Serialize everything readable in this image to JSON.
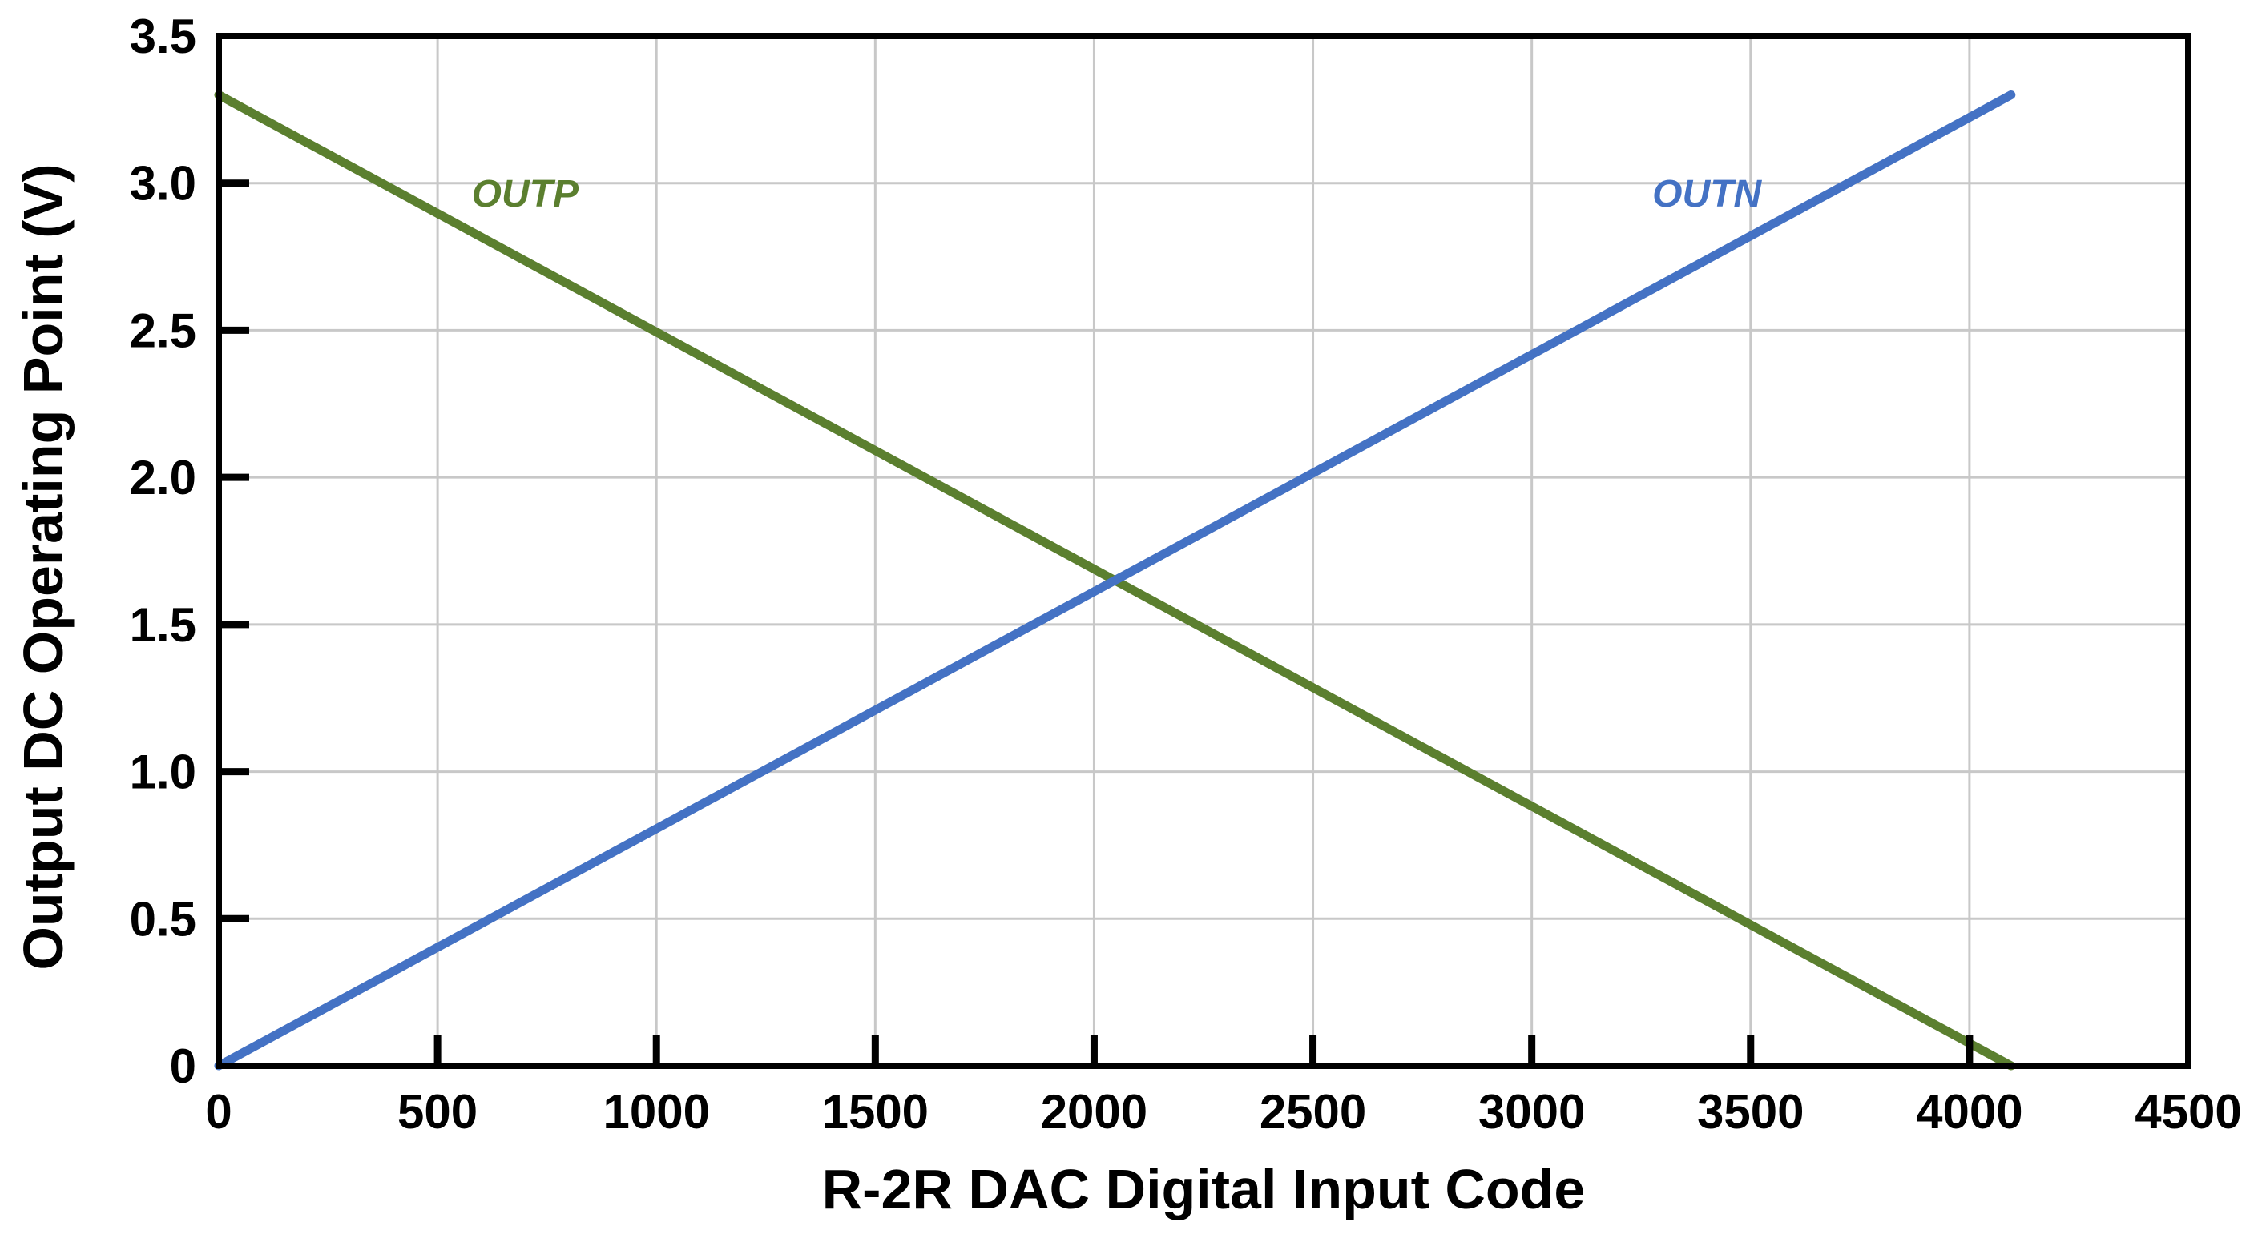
{
  "chart_data": {
    "type": "line",
    "title": "",
    "xlabel": "R-2R DAC Digital Input Code",
    "ylabel": "Output DC Operating Point (V)",
    "xlim": [
      0,
      4500
    ],
    "ylim": [
      0,
      3.5
    ],
    "x_ticks": [
      0,
      500,
      1000,
      1500,
      2000,
      2500,
      3000,
      3500,
      4000,
      4500
    ],
    "x_tick_labels": [
      "0",
      "500",
      "1000",
      "1500",
      "2000",
      "2500",
      "3000",
      "3500",
      "4000",
      "4500"
    ],
    "y_ticks": [
      0,
      0.5,
      1.0,
      1.5,
      2.0,
      2.5,
      3.0,
      3.5
    ],
    "y_tick_labels": [
      "0",
      "0.5",
      "1.0",
      "1.5",
      "2.0",
      "2.5",
      "3.0",
      "3.5"
    ],
    "grid": true,
    "series": [
      {
        "name": "OUTP",
        "color": "#5b7f2f",
        "x": [
          0,
          4095
        ],
        "y": [
          3.3,
          0.0
        ],
        "label_at": {
          "x": 700,
          "y": 2.92
        }
      },
      {
        "name": "OUTN",
        "color": "#4472c4",
        "x": [
          0,
          4095
        ],
        "y": [
          0.0,
          3.3
        ],
        "label_at": {
          "x": 3400,
          "y": 2.92
        }
      }
    ]
  }
}
